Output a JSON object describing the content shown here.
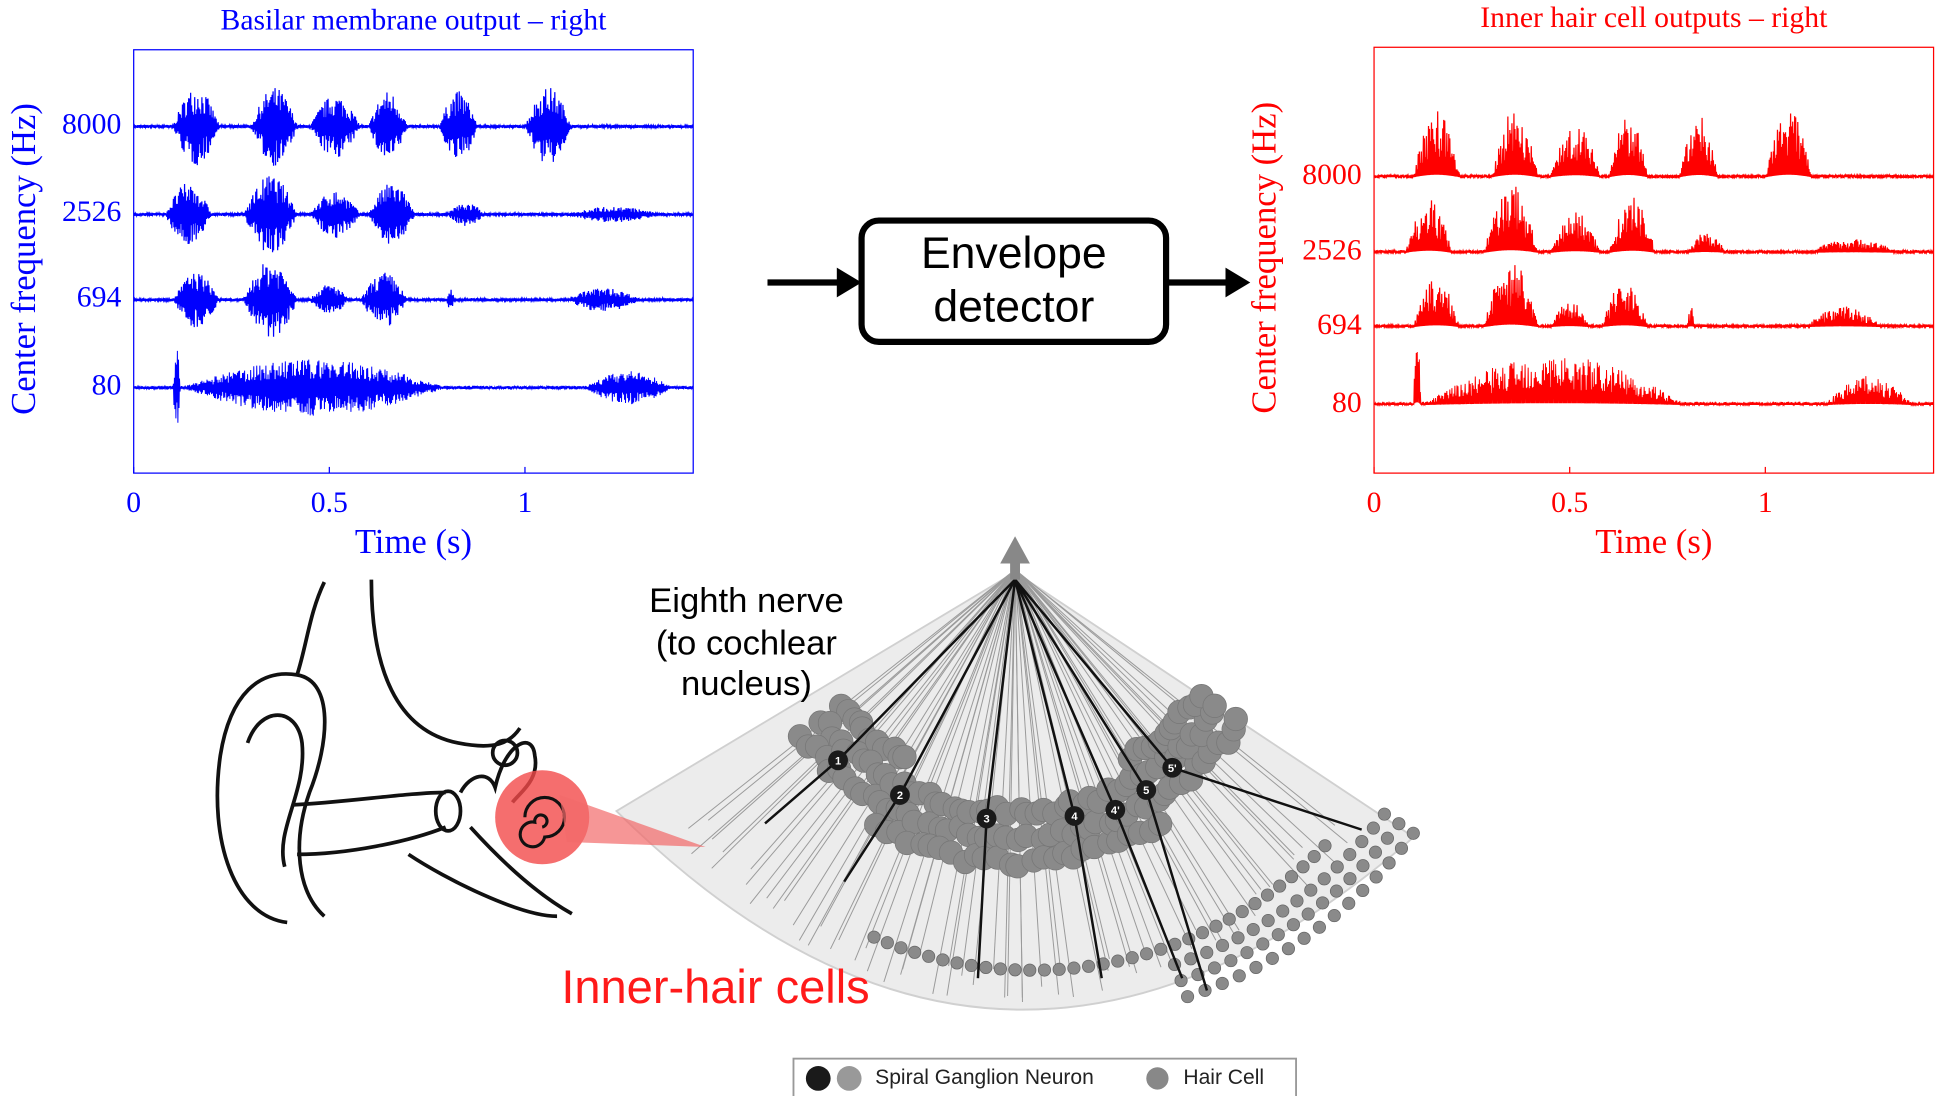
{
  "left_panel": {
    "title": "Basilar membrane output – right",
    "y_label": "Center frequency (Hz)",
    "channels": [
      8000,
      2526,
      694,
      80
    ],
    "x_label": "Time (s)",
    "xlim": [
      0,
      1.43
    ],
    "xticks": [
      0,
      0.5,
      1
    ]
  },
  "right_panel": {
    "title": "Inner hair cell outputs – right",
    "y_label": "Center frequency (Hz)",
    "channels": [
      8000,
      2526,
      694,
      80
    ],
    "x_label": "Time (s)",
    "xlim": [
      0,
      1.43
    ],
    "xticks": [
      0,
      0.5,
      1
    ]
  },
  "envelope_detector": {
    "lines": [
      "Envelope",
      "detector"
    ]
  },
  "nerve_label": {
    "lines": [
      "Eighth nerve",
      "(to cochlear",
      "nucleus)"
    ]
  },
  "inner_hair_cells_label": "Inner-hair cells",
  "neurons": [
    "1",
    "2",
    "3",
    "4",
    "4'",
    "5",
    "5'"
  ],
  "legend": {
    "items": [
      "Spiral Ganglion Neuron",
      "Hair Cell"
    ]
  }
}
